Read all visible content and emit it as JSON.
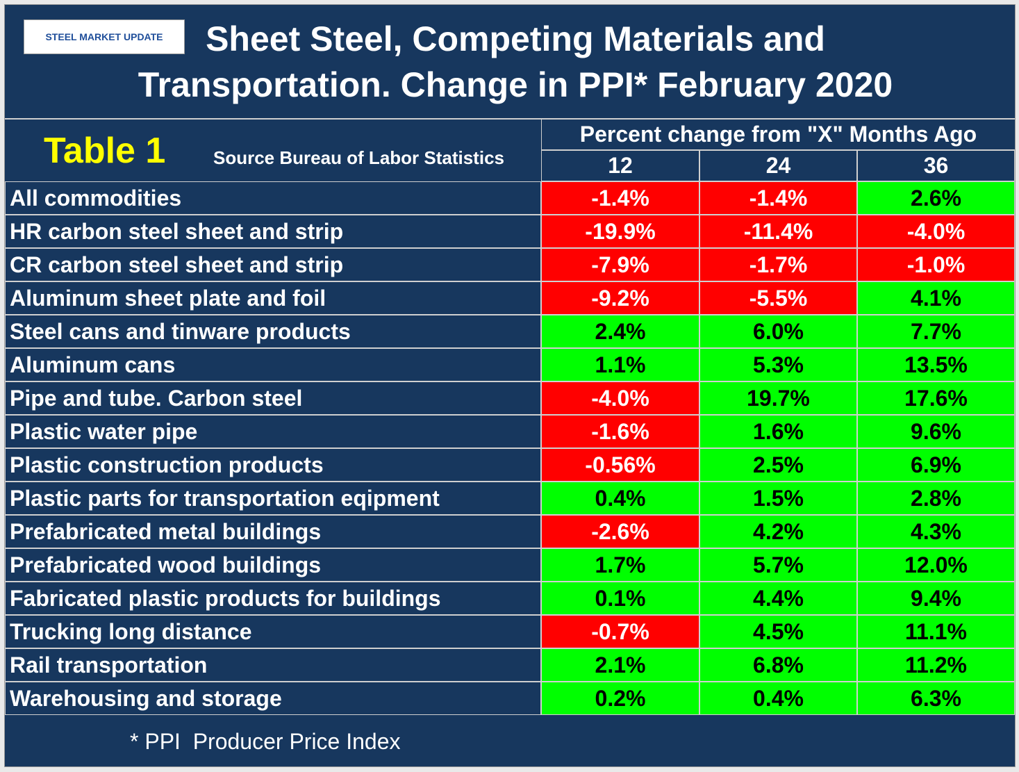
{
  "logo": "STEEL MARKET UPDATE",
  "title_lines": [
    "Sheet Steel, Competing Materials and",
    "Transportation. Change in PPI* February 2020"
  ],
  "table": {
    "name": "Table 1",
    "source": "Source Bureau of Labor Statistics",
    "group_header": "Percent change from \"X\" Months Ago",
    "columns": [
      "12",
      "24",
      "36"
    ],
    "colors": {
      "negative": "#ff0000",
      "positive": "#00ff00"
    },
    "rows": [
      {
        "label": "All commodities",
        "values": [
          "-1.4%",
          "-1.4%",
          "2.6%"
        ]
      },
      {
        "label": "HR carbon steel sheet and strip",
        "values": [
          "-19.9%",
          "-11.4%",
          "-4.0%"
        ]
      },
      {
        "label": "CR carbon steel sheet and strip",
        "values": [
          "-7.9%",
          "-1.7%",
          "-1.0%"
        ]
      },
      {
        "label": "Aluminum sheet plate and foil",
        "values": [
          "-9.2%",
          "-5.5%",
          "4.1%"
        ]
      },
      {
        "label": "Steel cans and tinware products",
        "values": [
          "2.4%",
          "6.0%",
          "7.7%"
        ]
      },
      {
        "label": "Aluminum cans",
        "values": [
          "1.1%",
          "5.3%",
          "13.5%"
        ]
      },
      {
        "label": "Pipe and tube. Carbon steel",
        "values": [
          "-4.0%",
          "19.7%",
          "17.6%"
        ]
      },
      {
        "label": "Plastic water pipe",
        "values": [
          "-1.6%",
          "1.6%",
          "9.6%"
        ]
      },
      {
        "label": "Plastic construction products",
        "values": [
          "-0.56%",
          "2.5%",
          "6.9%"
        ]
      },
      {
        "label": "Plastic parts for transportation eqipment",
        "values": [
          "0.4%",
          "1.5%",
          "2.8%"
        ]
      },
      {
        "label": "Prefabricated metal buildings",
        "values": [
          "-2.6%",
          "4.2%",
          "4.3%"
        ]
      },
      {
        "label": "Prefabricated wood buildings",
        "values": [
          "1.7%",
          "5.7%",
          "12.0%"
        ]
      },
      {
        "label": "Fabricated plastic products for buildings",
        "values": [
          "0.1%",
          "4.4%",
          "9.4%"
        ]
      },
      {
        "label": "Trucking long distance",
        "values": [
          "-0.7%",
          "4.5%",
          "11.1%"
        ]
      },
      {
        "label": "Rail transportation",
        "values": [
          "2.1%",
          "6.8%",
          "11.2%"
        ]
      },
      {
        "label": "Warehousing and storage",
        "values": [
          "0.2%",
          "0.4%",
          "6.3%"
        ]
      }
    ]
  },
  "footnote": "* PPI  Producer Price Index"
}
